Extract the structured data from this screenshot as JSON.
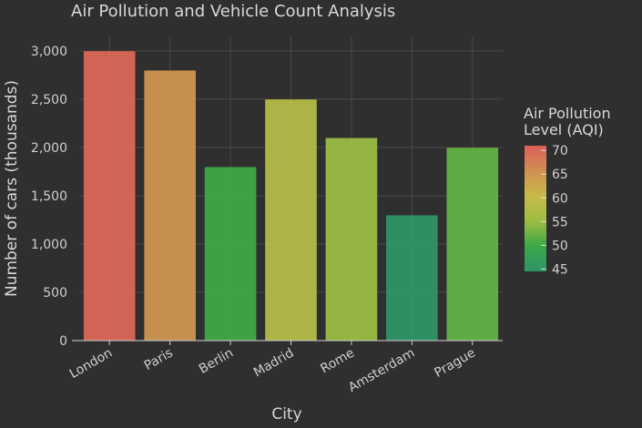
{
  "chart_data": {
    "type": "bar",
    "title": "Air Pollution and Vehicle Count Analysis",
    "xlabel": "City",
    "ylabel": "Number of cars (thousands)",
    "categories": [
      "London",
      "Paris",
      "Berlin",
      "Madrid",
      "Rome",
      "Amsterdam",
      "Prague"
    ],
    "values": [
      3000,
      2800,
      1800,
      2500,
      2100,
      1300,
      2000
    ],
    "color_values": [
      70,
      65,
      50,
      58,
      55,
      45,
      52
    ],
    "ylim": [
      0,
      3150
    ],
    "yticks": [
      0,
      500,
      1000,
      1500,
      2000,
      2500,
      3000
    ],
    "ytick_labels": [
      "0",
      "500",
      "1,000",
      "1,500",
      "2,000",
      "2,500",
      "3,000"
    ],
    "grid": true,
    "colorbar": {
      "title_lines": [
        "Air Pollution",
        "Level (AQI)"
      ],
      "range": [
        44.5,
        71
      ],
      "ticks": [
        45,
        50,
        55,
        60,
        65,
        70
      ],
      "colors": [
        "#2e9e6e",
        "#3cb54a",
        "#a8cc45",
        "#d9c94a",
        "#e09a55",
        "#f2635e"
      ]
    },
    "legend_position": "right"
  }
}
